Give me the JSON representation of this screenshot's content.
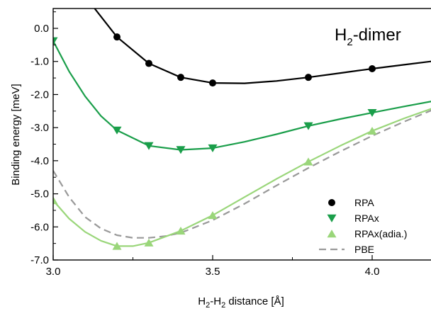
{
  "chart_data": {
    "type": "line",
    "title_main": "H",
    "title_sub": "2",
    "title_tail": "-dimer",
    "xlabel_parts": [
      "H",
      "2",
      "-H",
      "2",
      " distance [Å]"
    ],
    "ylabel": "Binding energy [meV]",
    "xlim": [
      3.0,
      4.2
    ],
    "ylim": [
      -7.0,
      0.6
    ],
    "x_ticks": [
      {
        "value": 3.0,
        "label": "3.0"
      },
      {
        "value": 3.5,
        "label": "3.5"
      },
      {
        "value": 4.0,
        "label": "4.0"
      }
    ],
    "y_ticks": [
      {
        "value": 0.0,
        "label": "0.0"
      },
      {
        "value": -1.0,
        "label": "-1.0"
      },
      {
        "value": -2.0,
        "label": "-2.0"
      },
      {
        "value": -3.0,
        "label": "-3.0"
      },
      {
        "value": -4.0,
        "label": "-4.0"
      },
      {
        "value": -5.0,
        "label": "-5.0"
      },
      {
        "value": -6.0,
        "label": "-6.0"
      },
      {
        "value": -7.0,
        "label": "-7.0"
      }
    ],
    "legend_position": "bottom-right",
    "series": [
      {
        "name": "RPA",
        "color": "#000000",
        "marker": "circle",
        "points": [
          [
            3.2,
            -0.26
          ],
          [
            3.3,
            -1.06
          ],
          [
            3.4,
            -1.48
          ],
          [
            3.5,
            -1.65
          ],
          [
            3.8,
            -1.48
          ],
          [
            4.0,
            -1.22
          ]
        ],
        "curve": [
          [
            3.13,
            0.6
          ],
          [
            3.2,
            -0.26
          ],
          [
            3.3,
            -1.06
          ],
          [
            3.4,
            -1.48
          ],
          [
            3.5,
            -1.65
          ],
          [
            3.6,
            -1.66
          ],
          [
            3.7,
            -1.59
          ],
          [
            3.8,
            -1.48
          ],
          [
            3.9,
            -1.35
          ],
          [
            4.0,
            -1.22
          ],
          [
            4.1,
            -1.1
          ],
          [
            4.2,
            -0.98
          ]
        ]
      },
      {
        "name": "RPAx",
        "color": "#1a9e4a",
        "marker": "triangle-down",
        "points": [
          [
            3.0,
            -0.38
          ],
          [
            3.2,
            -3.08
          ],
          [
            3.3,
            -3.55
          ],
          [
            3.4,
            -3.67
          ],
          [
            3.5,
            -3.62
          ],
          [
            3.8,
            -2.95
          ],
          [
            4.0,
            -2.55
          ]
        ],
        "curve": [
          [
            3.0,
            -0.38
          ],
          [
            3.05,
            -1.3
          ],
          [
            3.1,
            -2.05
          ],
          [
            3.15,
            -2.65
          ],
          [
            3.2,
            -3.08
          ],
          [
            3.3,
            -3.55
          ],
          [
            3.4,
            -3.67
          ],
          [
            3.5,
            -3.62
          ],
          [
            3.6,
            -3.43
          ],
          [
            3.7,
            -3.2
          ],
          [
            3.8,
            -2.95
          ],
          [
            3.9,
            -2.74
          ],
          [
            4.0,
            -2.55
          ],
          [
            4.1,
            -2.36
          ],
          [
            4.2,
            -2.18
          ]
        ]
      },
      {
        "name": "RPAx(adia.)",
        "color": "#9ad67a",
        "marker": "triangle-up",
        "points": [
          [
            3.0,
            -5.2
          ],
          [
            3.2,
            -6.58
          ],
          [
            3.3,
            -6.48
          ],
          [
            3.4,
            -6.12
          ],
          [
            3.5,
            -5.65
          ],
          [
            3.8,
            -4.03
          ],
          [
            4.0,
            -3.1
          ]
        ],
        "curve": [
          [
            3.0,
            -5.2
          ],
          [
            3.05,
            -5.75
          ],
          [
            3.1,
            -6.15
          ],
          [
            3.15,
            -6.42
          ],
          [
            3.2,
            -6.58
          ],
          [
            3.25,
            -6.58
          ],
          [
            3.3,
            -6.48
          ],
          [
            3.4,
            -6.12
          ],
          [
            3.5,
            -5.65
          ],
          [
            3.6,
            -5.1
          ],
          [
            3.7,
            -4.55
          ],
          [
            3.8,
            -4.03
          ],
          [
            3.9,
            -3.55
          ],
          [
            4.0,
            -3.1
          ],
          [
            4.1,
            -2.72
          ],
          [
            4.2,
            -2.38
          ]
        ]
      },
      {
        "name": "PBE",
        "color": "#999999",
        "marker": "none",
        "dashed": true,
        "curve": [
          [
            3.0,
            -4.3
          ],
          [
            3.05,
            -5.1
          ],
          [
            3.1,
            -5.7
          ],
          [
            3.15,
            -6.05
          ],
          [
            3.2,
            -6.25
          ],
          [
            3.25,
            -6.33
          ],
          [
            3.3,
            -6.33
          ],
          [
            3.35,
            -6.28
          ],
          [
            3.4,
            -6.18
          ],
          [
            3.5,
            -5.8
          ],
          [
            3.6,
            -5.3
          ],
          [
            3.7,
            -4.75
          ],
          [
            3.8,
            -4.22
          ],
          [
            3.9,
            -3.72
          ],
          [
            4.0,
            -3.25
          ],
          [
            4.1,
            -2.82
          ],
          [
            4.2,
            -2.42
          ]
        ]
      }
    ]
  }
}
